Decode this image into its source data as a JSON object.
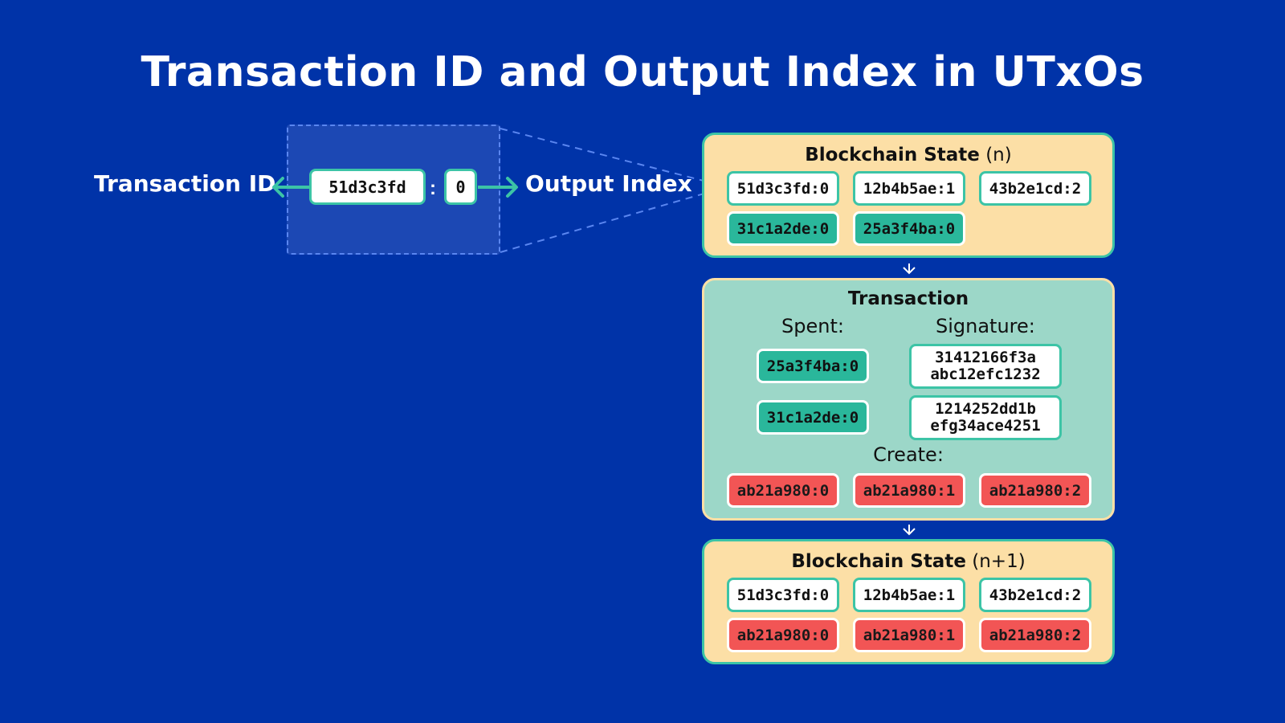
{
  "title": "Transaction ID and Output Index in UTxOs",
  "explainer": {
    "txid_label": "Transaction ID",
    "txid_value": "51d3c3fd",
    "separator": ":",
    "index_value": "0",
    "index_label": "Output Index"
  },
  "state_n": {
    "title": "Blockchain State",
    "suffix": "(n)",
    "utxos": [
      {
        "id": "51d3c3fd:0",
        "style": "white"
      },
      {
        "id": "12b4b5ae:1",
        "style": "white"
      },
      {
        "id": "43b2e1cd:2",
        "style": "white"
      },
      {
        "id": "31c1a2de:0",
        "style": "teal"
      },
      {
        "id": "25a3f4ba:0",
        "style": "teal"
      }
    ]
  },
  "transaction": {
    "title": "Transaction",
    "spent_label": "Spent:",
    "signature_label": "Signature:",
    "spent": [
      "25a3f4ba:0",
      "31c1a2de:0"
    ],
    "signatures": [
      [
        "31412166f3a",
        "abc12efc1232"
      ],
      [
        "1214252dd1b",
        "efg34ace4251"
      ]
    ],
    "create_label": "Create:",
    "create": [
      "ab21a980:0",
      "ab21a980:1",
      "ab21a980:2"
    ]
  },
  "state_n1": {
    "title": "Blockchain State",
    "suffix": "(n+1)",
    "utxos": [
      {
        "id": "51d3c3fd:0",
        "style": "white"
      },
      {
        "id": "12b4b5ae:1",
        "style": "white"
      },
      {
        "id": "43b2e1cd:2",
        "style": "white"
      },
      {
        "id": "ab21a980:0",
        "style": "red"
      },
      {
        "id": "ab21a980:1",
        "style": "red"
      },
      {
        "id": "ab21a980:2",
        "style": "red"
      }
    ]
  },
  "colors": {
    "background": "#0033a8",
    "teal": "#3cc4a6",
    "state_panel": "#fcdfa6",
    "tx_panel": "#9cd7c8",
    "created": "#f25555"
  }
}
